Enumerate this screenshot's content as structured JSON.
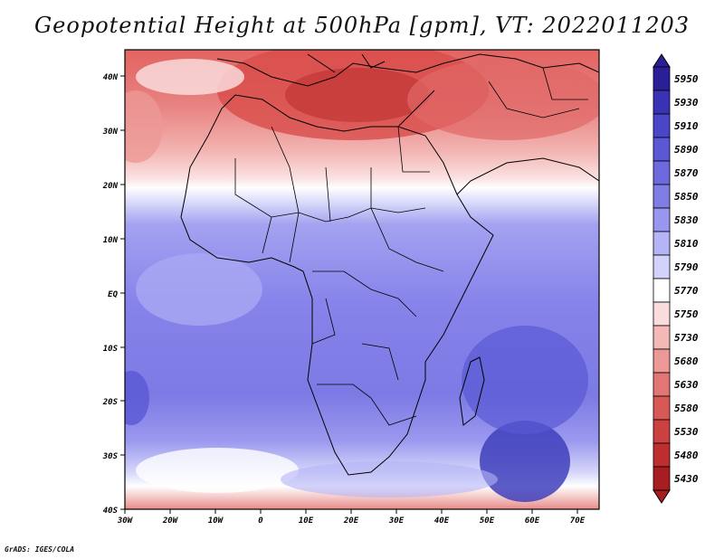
{
  "title": "Geopotential Height at 500hPa [gpm], VT: 2022011203",
  "credit": "GrADS: IGES/COLA",
  "map": {
    "region": "Africa",
    "lat_labels": [
      "40N",
      "30N",
      "20N",
      "10N",
      "EQ",
      "10S",
      "20S",
      "30S",
      "40S"
    ],
    "lon_labels": [
      "30W",
      "20W",
      "10W",
      "0",
      "10E",
      "20E",
      "30E",
      "40E",
      "50E",
      "60E",
      "70E"
    ]
  },
  "colorbar": {
    "levels": [
      "5950",
      "5930",
      "5910",
      "5890",
      "5870",
      "5850",
      "5830",
      "5810",
      "5790",
      "5770",
      "5750",
      "5730",
      "5680",
      "5630",
      "5580",
      "5530",
      "5480",
      "5430"
    ],
    "colors": [
      "#2a1f96",
      "#3a32b4",
      "#4a46c8",
      "#5a58d4",
      "#6c6ade",
      "#807ee6",
      "#9896ee",
      "#b4b4f6",
      "#d2d2fa",
      "#ffffff",
      "#fbdcdc",
      "#f4b8b6",
      "#ec9896",
      "#e27674",
      "#d85856",
      "#cc4040",
      "#be2e2e",
      "#a81e20"
    ]
  }
}
